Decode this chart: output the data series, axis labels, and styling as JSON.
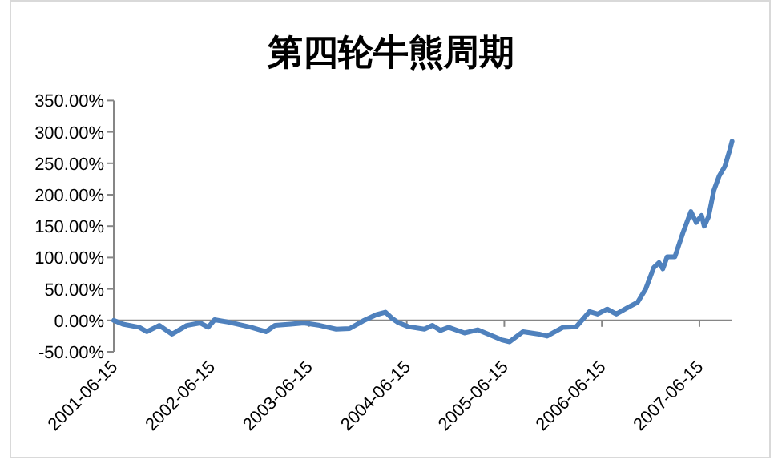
{
  "chart_data": {
    "type": "line",
    "title": "第四轮牛熊周期",
    "x": [
      "2001-06-15",
      "2001-07-19",
      "2001-09-18",
      "2001-10-17",
      "2001-12-02",
      "2002-01-19",
      "2002-03-15",
      "2002-05-04",
      "2002-06-03",
      "2002-06-27",
      "2002-08-21",
      "2002-11-10",
      "2003-01-05",
      "2003-02-08",
      "2003-04-08",
      "2003-05-27",
      "2003-07-26",
      "2003-09-25",
      "2003-11-14",
      "2004-01-03",
      "2004-02-22",
      "2004-03-27",
      "2004-04-22",
      "2004-05-12",
      "2004-06-21",
      "2004-08-20",
      "2004-09-19",
      "2004-10-19",
      "2004-11-18",
      "2005-01-17",
      "2005-03-07",
      "2005-04-16",
      "2005-06-05",
      "2005-07-05",
      "2005-08-24",
      "2005-10-23",
      "2005-11-22",
      "2006-01-21",
      "2006-03-11",
      "2006-04-30",
      "2006-05-30",
      "2006-07-05",
      "2006-08-08",
      "2006-09-18",
      "2006-10-27",
      "2006-11-26",
      "2006-12-26",
      "2007-01-15",
      "2007-01-29",
      "2007-02-14",
      "2007-03-15",
      "2007-04-14",
      "2007-05-14",
      "2007-06-03",
      "2007-06-23",
      "2007-07-03",
      "2007-07-19",
      "2007-08-08",
      "2007-08-28",
      "2007-09-18",
      "2007-10-07",
      "2007-10-15"
    ],
    "series": [
      {
        "color": "#4f81bd",
        "values": [
          0,
          -6,
          -11,
          -18,
          -8,
          -22,
          -8,
          -4,
          -11,
          1,
          -3,
          -11,
          -18,
          -8,
          -6,
          -4,
          -8,
          -14,
          -13,
          -1,
          9,
          13,
          3,
          -3,
          -10,
          -14,
          -8,
          -16,
          -11,
          -20,
          -15,
          -22,
          -31,
          -34,
          -18,
          -22,
          -25,
          -11,
          -10,
          14,
          10,
          18,
          10,
          20,
          29,
          50,
          84,
          92,
          82,
          101,
          101,
          139,
          173,
          156,
          167,
          150,
          165,
          207,
          230,
          245,
          272,
          285
        ]
      }
    ],
    "xlim": [
      "2001-06-15",
      "2007-10-16"
    ],
    "xticks": [
      "2001-06-15",
      "2002-06-15",
      "2003-06-15",
      "2004-06-15",
      "2005-06-15",
      "2006-06-15",
      "2007-06-15"
    ],
    "ylim": [
      -50,
      350
    ],
    "yticks": [
      {
        "value": -50,
        "label": "-50.00%"
      },
      {
        "value": 0,
        "label": "0.00%"
      },
      {
        "value": 50,
        "label": "50.00%"
      },
      {
        "value": 100,
        "label": "100.00%"
      },
      {
        "value": 150,
        "label": "150.00%"
      },
      {
        "value": 200,
        "label": "200.00%"
      },
      {
        "value": 250,
        "label": "250.00%"
      },
      {
        "value": 300,
        "label": "300.00%"
      },
      {
        "value": 350,
        "label": "350.00%"
      }
    ],
    "grid": false,
    "line_style": "solid",
    "marker": "none"
  }
}
